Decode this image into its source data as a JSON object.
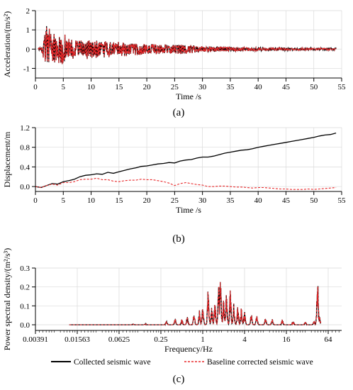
{
  "chart_data": [
    {
      "type": "line",
      "panel_label": "(a)",
      "xlabel": "Time /s",
      "ylabel": "Acceleration/(m/s²)",
      "xlim": [
        0,
        55
      ],
      "ylim": [
        -1.5,
        2
      ],
      "xticks": [
        "0",
        "5",
        "10",
        "15",
        "20",
        "25",
        "30",
        "35",
        "40",
        "45",
        "50",
        "55"
      ],
      "yticks": [
        "-1",
        "0",
        "1",
        "2"
      ],
      "grid": true,
      "series": [
        {
          "name": "Collected seismic wave",
          "color": "#000000",
          "style": "solid",
          "envelope": [
            [
              0,
              0.04
            ],
            [
              1,
              0.08
            ],
            [
              1.5,
              0.6
            ],
            [
              2,
              1.5
            ],
            [
              2.5,
              1.1
            ],
            [
              3,
              0.7
            ],
            [
              3.5,
              0.9
            ],
            [
              4,
              0.6
            ],
            [
              4.5,
              0.9
            ],
            [
              5,
              1.0
            ],
            [
              5.5,
              0.7
            ],
            [
              7,
              0.5
            ],
            [
              9,
              0.5
            ],
            [
              10,
              0.55
            ],
            [
              11,
              0.5
            ],
            [
              12,
              0.45
            ],
            [
              14,
              0.4
            ],
            [
              16,
              0.38
            ],
            [
              18,
              0.33
            ],
            [
              20,
              0.3
            ],
            [
              22,
              0.27
            ],
            [
              24,
              0.25
            ],
            [
              26,
              0.3
            ],
            [
              28,
              0.22
            ],
            [
              30,
              0.17
            ],
            [
              33,
              0.14
            ],
            [
              36,
              0.12
            ],
            [
              40,
              0.1
            ],
            [
              45,
              0.08
            ],
            [
              50,
              0.07
            ],
            [
              54,
              0.06
            ]
          ]
        },
        {
          "name": "Baseline corrected seismic wave",
          "color": "#e8292b",
          "style": "dashed",
          "envelope": [
            [
              0,
              0.04
            ],
            [
              1,
              0.08
            ],
            [
              1.5,
              0.6
            ],
            [
              2,
              1.45
            ],
            [
              2.5,
              1.1
            ],
            [
              3,
              0.7
            ],
            [
              3.5,
              0.9
            ],
            [
              4,
              0.6
            ],
            [
              4.5,
              0.9
            ],
            [
              5,
              1.0
            ],
            [
              5.5,
              0.7
            ],
            [
              7,
              0.5
            ],
            [
              9,
              0.5
            ],
            [
              10,
              0.55
            ],
            [
              11,
              0.5
            ],
            [
              12,
              0.45
            ],
            [
              14,
              0.4
            ],
            [
              16,
              0.38
            ],
            [
              18,
              0.33
            ],
            [
              20,
              0.3
            ],
            [
              22,
              0.27
            ],
            [
              24,
              0.25
            ],
            [
              26,
              0.3
            ],
            [
              28,
              0.22
            ],
            [
              30,
              0.17
            ],
            [
              33,
              0.14
            ],
            [
              36,
              0.12
            ],
            [
              40,
              0.1
            ],
            [
              45,
              0.08
            ],
            [
              50,
              0.07
            ],
            [
              54,
              0.06
            ]
          ]
        }
      ]
    },
    {
      "type": "line",
      "panel_label": "(b)",
      "xlabel": "Time /s",
      "ylabel": "Displacement/m",
      "xlim": [
        0,
        55
      ],
      "ylim": [
        -0.1,
        1.2
      ],
      "xticks": [
        "0",
        "5",
        "10",
        "15",
        "20",
        "25",
        "30",
        "35",
        "40",
        "45",
        "50",
        "55"
      ],
      "yticks": [
        "0.0",
        "0.4",
        "0.8",
        "1.2"
      ],
      "grid": true,
      "series": [
        {
          "name": "Collected seismic wave",
          "color": "#000000",
          "style": "solid",
          "x": [
            0,
            1,
            2,
            3,
            4,
            5,
            6,
            7,
            8,
            9,
            10,
            11,
            12,
            13,
            14,
            15,
            16,
            17,
            18,
            19,
            20,
            21,
            22,
            23,
            24,
            25,
            26,
            27,
            28,
            29,
            30,
            31,
            32,
            33,
            34,
            35,
            36,
            37,
            38,
            39,
            40,
            41,
            42,
            43,
            44,
            45,
            46,
            47,
            48,
            49,
            50,
            51,
            52,
            53,
            54
          ],
          "y": [
            0,
            -0.02,
            0.02,
            0.06,
            0.05,
            0.1,
            0.12,
            0.15,
            0.2,
            0.23,
            0.24,
            0.26,
            0.25,
            0.29,
            0.27,
            0.3,
            0.33,
            0.36,
            0.38,
            0.41,
            0.42,
            0.44,
            0.46,
            0.47,
            0.49,
            0.48,
            0.52,
            0.54,
            0.55,
            0.58,
            0.6,
            0.6,
            0.62,
            0.65,
            0.68,
            0.7,
            0.72,
            0.74,
            0.75,
            0.77,
            0.8,
            0.82,
            0.84,
            0.86,
            0.88,
            0.9,
            0.92,
            0.94,
            0.96,
            0.98,
            1.0,
            1.03,
            1.05,
            1.06,
            1.09
          ]
        },
        {
          "name": "Baseline corrected seismic wave",
          "color": "#e8292b",
          "style": "dashed",
          "x": [
            0,
            1,
            2,
            3,
            4,
            5,
            6,
            7,
            8,
            9,
            10,
            11,
            12,
            13,
            14,
            15,
            16,
            17,
            18,
            19,
            20,
            21,
            22,
            23,
            24,
            25,
            26,
            27,
            28,
            29,
            30,
            31,
            32,
            33,
            34,
            35,
            36,
            37,
            38,
            39,
            40,
            41,
            42,
            43,
            44,
            45,
            46,
            47,
            48,
            49,
            50,
            51,
            52,
            53,
            54
          ],
          "y": [
            0,
            -0.02,
            0.02,
            0.05,
            0.03,
            0.08,
            0.08,
            0.1,
            0.14,
            0.15,
            0.15,
            0.17,
            0.14,
            0.14,
            0.11,
            0.1,
            0.12,
            0.13,
            0.13,
            0.15,
            0.14,
            0.14,
            0.12,
            0.1,
            0.07,
            0.02,
            0.06,
            0.08,
            0.06,
            0.04,
            0.03,
            0.0,
            0.0,
            0.01,
            0.01,
            0.0,
            -0.01,
            -0.01,
            -0.02,
            -0.03,
            -0.02,
            -0.02,
            -0.03,
            -0.04,
            -0.05,
            -0.05,
            -0.06,
            -0.06,
            -0.06,
            -0.05,
            -0.06,
            -0.05,
            -0.04,
            -0.03,
            -0.02
          ]
        }
      ]
    },
    {
      "type": "line",
      "panel_label": "(c)",
      "xlabel": "Frequency/Hz",
      "ylabel": "Power spectral density/(m²/s³)",
      "xscale": "log2",
      "xlim": [
        0.00391,
        100
      ],
      "ylim": [
        -0.03,
        0.3
      ],
      "xticks": [
        "0.00391",
        "0.01563",
        "0.0625",
        "0.25",
        "1",
        "4",
        "16",
        "64"
      ],
      "yticks": [
        "0.0",
        "0.1",
        "0.2",
        "0.3"
      ],
      "grid": true,
      "series": [
        {
          "name": "Collected seismic wave",
          "color": "#000000",
          "style": "solid",
          "peaks": [
            [
              0.012,
              0.0
            ],
            [
              0.1,
              0.003
            ],
            [
              0.15,
              0.005
            ],
            [
              0.3,
              0.02
            ],
            [
              0.4,
              0.035
            ],
            [
              0.5,
              0.03
            ],
            [
              0.6,
              0.045
            ],
            [
              0.75,
              0.06
            ],
            [
              0.9,
              0.08
            ],
            [
              1.0,
              0.11
            ],
            [
              1.2,
              0.2
            ],
            [
              1.35,
              0.1
            ],
            [
              1.5,
              0.12
            ],
            [
              1.7,
              0.22
            ],
            [
              1.8,
              0.24
            ],
            [
              2.0,
              0.15
            ],
            [
              2.2,
              0.17
            ],
            [
              2.5,
              0.19
            ],
            [
              2.8,
              0.12
            ],
            [
              3.2,
              0.1
            ],
            [
              3.6,
              0.09
            ],
            [
              4.0,
              0.07
            ],
            [
              5.0,
              0.06
            ],
            [
              6.0,
              0.05
            ],
            [
              8.0,
              0.04
            ],
            [
              10,
              0.03
            ],
            [
              14,
              0.025
            ],
            [
              20,
              0.02
            ],
            [
              30,
              0.015
            ],
            [
              40,
              0.02
            ],
            [
              45,
              0.24
            ],
            [
              48,
              0.05
            ]
          ]
        },
        {
          "name": "Baseline corrected seismic wave",
          "color": "#e8292b",
          "style": "dashed",
          "peaks": [
            [
              0.012,
              0.0
            ],
            [
              0.1,
              0.003
            ],
            [
              0.15,
              0.005
            ],
            [
              0.3,
              0.02
            ],
            [
              0.4,
              0.035
            ],
            [
              0.5,
              0.03
            ],
            [
              0.6,
              0.045
            ],
            [
              0.75,
              0.06
            ],
            [
              0.9,
              0.08
            ],
            [
              1.0,
              0.11
            ],
            [
              1.2,
              0.2
            ],
            [
              1.35,
              0.1
            ],
            [
              1.5,
              0.12
            ],
            [
              1.7,
              0.22
            ],
            [
              1.8,
              0.24
            ],
            [
              2.0,
              0.15
            ],
            [
              2.2,
              0.17
            ],
            [
              2.5,
              0.19
            ],
            [
              2.8,
              0.12
            ],
            [
              3.2,
              0.1
            ],
            [
              3.6,
              0.09
            ],
            [
              4.0,
              0.07
            ],
            [
              5.0,
              0.06
            ],
            [
              6.0,
              0.05
            ],
            [
              8.0,
              0.04
            ],
            [
              10,
              0.03
            ],
            [
              14,
              0.025
            ],
            [
              20,
              0.02
            ],
            [
              30,
              0.015
            ],
            [
              40,
              0.02
            ],
            [
              45,
              0.24
            ],
            [
              48,
              0.05
            ]
          ]
        }
      ]
    }
  ],
  "legend": {
    "placement": "bottom",
    "items": [
      {
        "label": "Collected seismic wave",
        "color": "#000000",
        "style": "solid"
      },
      {
        "label": "Baseline corrected seismic wave",
        "color": "#e8292b",
        "style": "dashed"
      }
    ]
  }
}
